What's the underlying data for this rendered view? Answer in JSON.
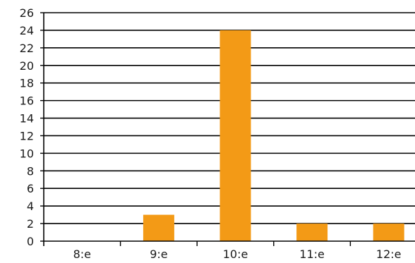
{
  "chart_data": {
    "type": "bar",
    "categories": [
      "8:e",
      "9:e",
      "10:e",
      "11:e",
      "12:e"
    ],
    "values": [
      0,
      3,
      24,
      2,
      2
    ],
    "title": "",
    "xlabel": "",
    "ylabel": "",
    "ylim": [
      0,
      26
    ],
    "y_ticks": [
      0,
      2,
      4,
      6,
      8,
      10,
      12,
      14,
      16,
      18,
      20,
      22,
      24,
      26
    ],
    "grid": true,
    "bar_color": "#f39a16"
  }
}
